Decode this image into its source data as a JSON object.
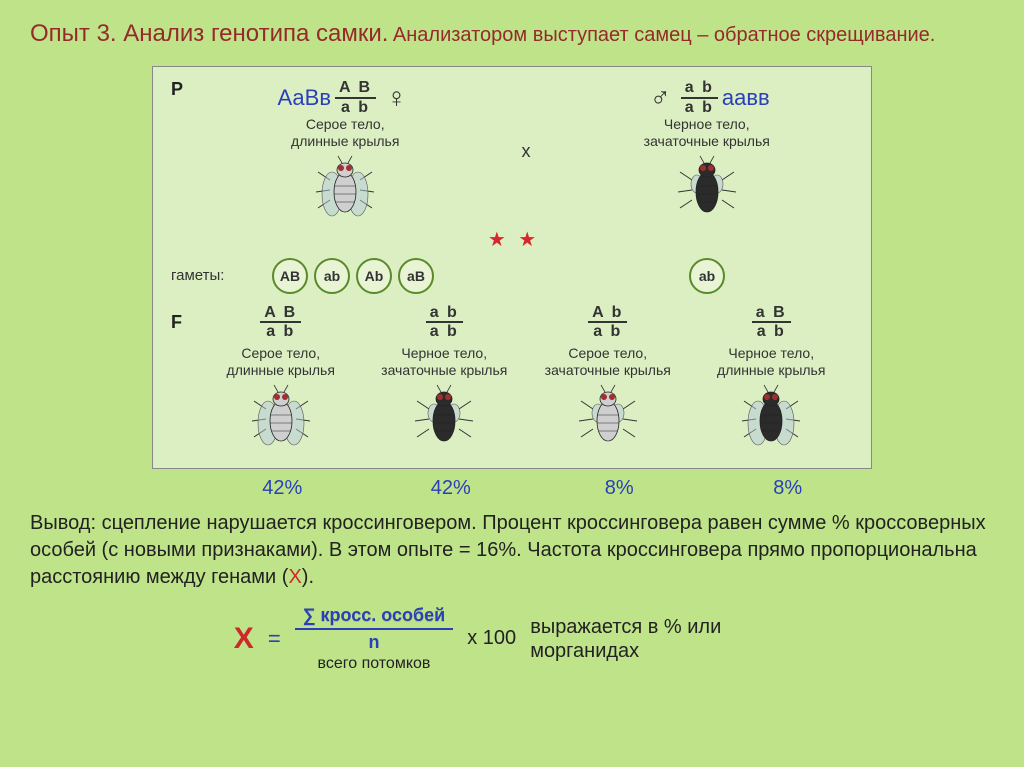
{
  "colors": {
    "page_bg": "#bee389",
    "panel_bg": "#dcefc2",
    "title": "#952a2a",
    "overlay_geno": "#2a3fb8",
    "text": "#222222",
    "star": "#d8282e",
    "gamete_border": "#5a8a2a",
    "x_red": "#cc2a2a",
    "formula_blue": "#2a3fb8"
  },
  "title": {
    "main": "Опыт 3. Анализ генотипа самки.",
    "sub": "Анализатором выступает самец – обратное скрещивание."
  },
  "parents": {
    "row_label": "P",
    "cross_symbol": "x",
    "female": {
      "overlay_genotype": "АаВв",
      "frac_top": "A B",
      "frac_bot": "a b",
      "sex_symbol": "♀",
      "phenotype_l1": "Серое тело,",
      "phenotype_l2": "длинные крылья",
      "body_color": "#cfcfcf",
      "wing_style": "long"
    },
    "male": {
      "overlay_genotype": "аавв",
      "frac_top": "a b",
      "frac_bot": "a b",
      "sex_symbol": "♂",
      "phenotype_l1": "Черное тело,",
      "phenotype_l2": "зачаточные крылья",
      "body_color": "#2b2b2b",
      "wing_style": "short"
    }
  },
  "gametes": {
    "label": "гаметы:",
    "female": [
      "AB",
      "ab",
      "Ab",
      "aB"
    ],
    "male": [
      "ab"
    ],
    "crossover_indices": [
      2,
      3
    ]
  },
  "offspring": {
    "row_label": "F",
    "items": [
      {
        "frac_top": "A B",
        "frac_bot": "a b",
        "pheno_l1": "Серое тело,",
        "pheno_l2": "длинные крылья",
        "body_color": "#cfcfcf",
        "wing_style": "long",
        "percent": "42%"
      },
      {
        "frac_top": "a b",
        "frac_bot": "a b",
        "pheno_l1": "Черное тело,",
        "pheno_l2": "зачаточные крылья",
        "body_color": "#2b2b2b",
        "wing_style": "short",
        "percent": "42%"
      },
      {
        "frac_top": "A b",
        "frac_bot": "a b",
        "pheno_l1": "Серое тело,",
        "pheno_l2": "зачаточные крылья",
        "body_color": "#cfcfcf",
        "wing_style": "short",
        "percent": "8%"
      },
      {
        "frac_top": "a B",
        "frac_bot": "a b",
        "pheno_l1": "Черное тело,",
        "pheno_l2": "длинные крылья",
        "body_color": "#2b2b2b",
        "wing_style": "long",
        "percent": "8%"
      }
    ]
  },
  "conclusion": {
    "prefix": "Вывод: сцепление нарушается кроссинговером. Процент кроссинговера равен сумме % кроссоверных особей (с новыми признаками). В этом опыте = 16%. Частота кроссинговера прямо пропорциональна расстоянию между генами (",
    "x": "Х",
    "suffix": ")."
  },
  "formula": {
    "X": "Х",
    "eq": "=",
    "numerator": "∑ кросс. особей",
    "denom_n": "n",
    "denom_label": "всего потомков",
    "times": "х 100",
    "desc": "выражается в % или морганидах"
  }
}
